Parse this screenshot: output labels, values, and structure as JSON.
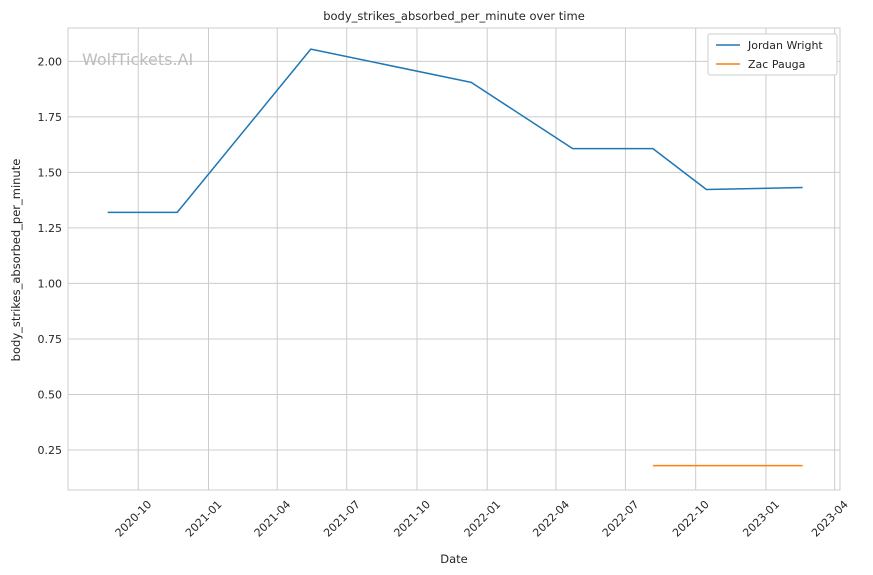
{
  "watermark": "WolfTickets.AI",
  "chart_data": {
    "type": "line",
    "title": "body_strikes_absorbed_per_minute over time",
    "xlabel": "Date",
    "ylabel": "body_strikes_absorbed_per_minute",
    "x_axis_type": "date",
    "xlim": [
      "2020-07-01",
      "2023-04-08"
    ],
    "ylim": [
      0.07,
      2.15
    ],
    "x_ticks": [
      "2020-10",
      "2021-01",
      "2021-04",
      "2021-07",
      "2021-10",
      "2022-01",
      "2022-04",
      "2022-07",
      "2022-10",
      "2023-01",
      "2023-04"
    ],
    "y_ticks": [
      0.25,
      0.5,
      0.75,
      1.0,
      1.25,
      1.5,
      1.75,
      2.0
    ],
    "y_tick_labels": [
      "0.25",
      "0.50",
      "0.75",
      "1.00",
      "1.25",
      "1.50",
      "1.75",
      "2.00"
    ],
    "grid": true,
    "legend_position": "top-right",
    "series": [
      {
        "name": "Jordan Wright",
        "color": "#1f77b4",
        "x": [
          "2020-08-22",
          "2020-11-21",
          "2021-05-15",
          "2021-12-11",
          "2022-04-23",
          "2022-08-06",
          "2022-10-15",
          "2023-02-18"
        ],
        "y": [
          1.32,
          1.32,
          2.055,
          1.905,
          1.607,
          1.607,
          1.423,
          1.432
        ]
      },
      {
        "name": "Zac Pauga",
        "color": "#ff7f0e",
        "x": [
          "2022-08-06",
          "2023-02-18"
        ],
        "y": [
          0.18,
          0.18
        ]
      }
    ]
  }
}
